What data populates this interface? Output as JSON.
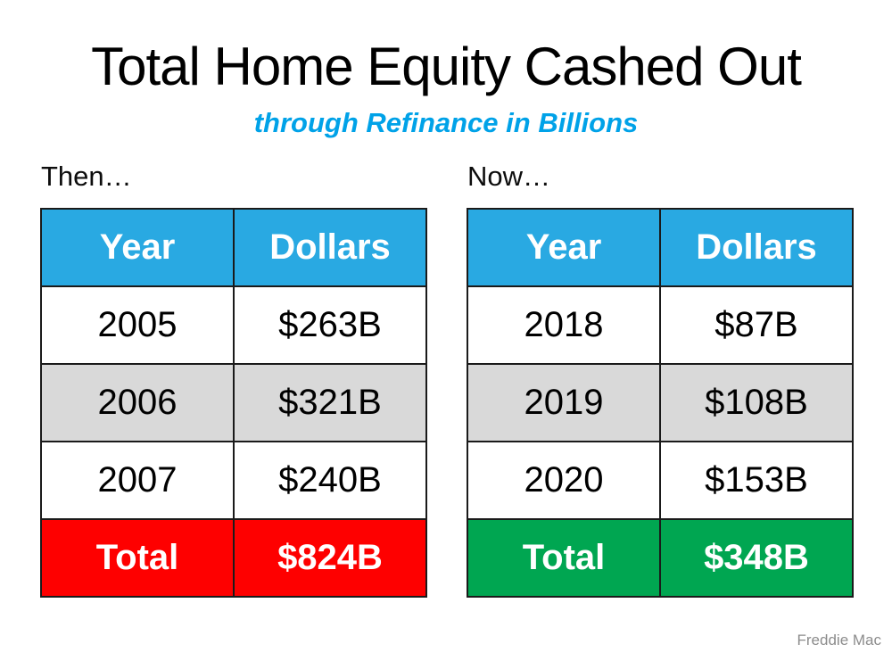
{
  "slide": {
    "title": "Total Home Equity Cashed Out",
    "subtitle": "through Refinance in Billions",
    "attribution": "Freddie Mac"
  },
  "colors": {
    "header_blue": "#29A9E2",
    "subtitle_blue": "#00A2E8",
    "row_gray": "#D9D9D9",
    "total_red": "#FE0000",
    "total_green": "#00A651",
    "border": "#1A1A1A"
  },
  "tables": [
    {
      "label": "Then…",
      "columns": [
        "Year",
        "Dollars"
      ],
      "rows": [
        [
          "2005",
          "$263B"
        ],
        [
          "2006",
          "$321B"
        ],
        [
          "2007",
          "$240B"
        ]
      ],
      "total": {
        "label": "Total",
        "value": "$824B"
      },
      "total_color": "#FE0000"
    },
    {
      "label": "Now…",
      "columns": [
        "Year",
        "Dollars"
      ],
      "rows": [
        [
          "2018",
          "$87B"
        ],
        [
          "2019",
          "$108B"
        ],
        [
          "2020",
          "$153B"
        ]
      ],
      "total": {
        "label": "Total",
        "value": "$348B"
      },
      "total_color": "#00A651"
    }
  ],
  "chart_data": [
    {
      "type": "table",
      "title": "Then…",
      "columns": [
        "Year",
        "Dollars"
      ],
      "rows": [
        [
          "2005",
          "$263B"
        ],
        [
          "2006",
          "$321B"
        ],
        [
          "2007",
          "$240B"
        ],
        [
          "Total",
          "$824B"
        ]
      ],
      "values_billions": {
        "2005": 263,
        "2006": 321,
        "2007": 240,
        "total": 824
      }
    },
    {
      "type": "table",
      "title": "Now…",
      "columns": [
        "Year",
        "Dollars"
      ],
      "rows": [
        [
          "2018",
          "$87B"
        ],
        [
          "2019",
          "$108B"
        ],
        [
          "2020",
          "$153B"
        ],
        [
          "Total",
          "$348B"
        ]
      ],
      "values_billions": {
        "2018": 87,
        "2019": 108,
        "2020": 153,
        "total": 348
      }
    }
  ]
}
